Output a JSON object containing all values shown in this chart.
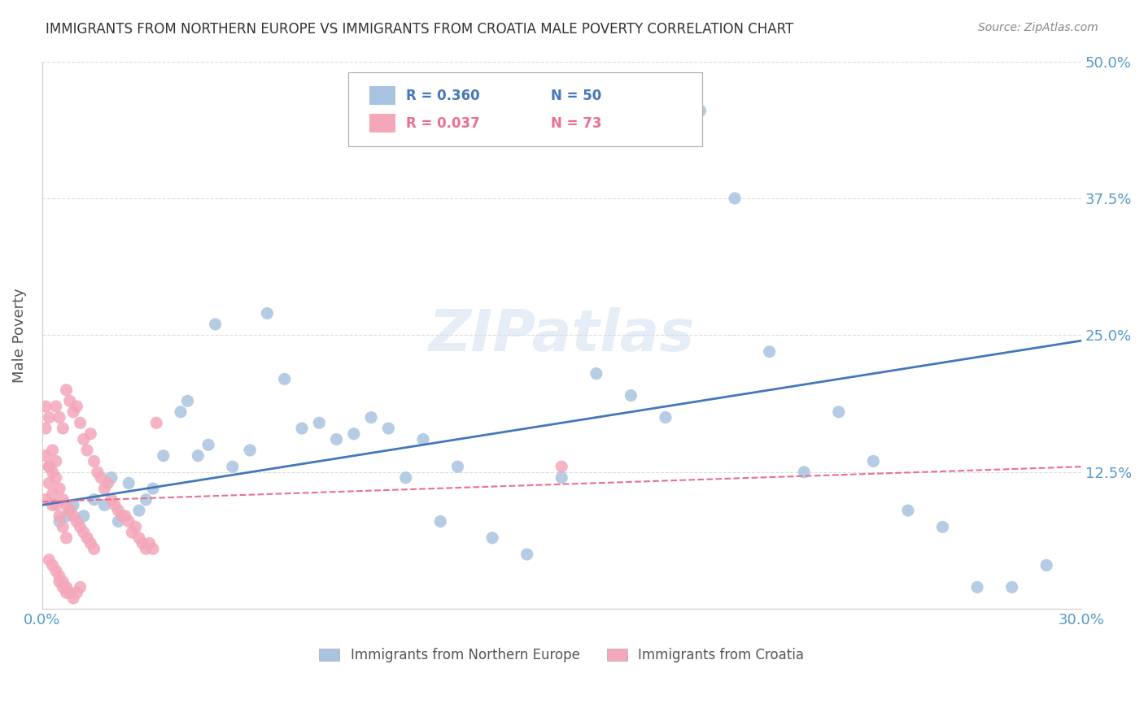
{
  "title": "IMMIGRANTS FROM NORTHERN EUROPE VS IMMIGRANTS FROM CROATIA MALE POVERTY CORRELATION CHART",
  "source": "Source: ZipAtlas.com",
  "xlabel": "",
  "ylabel": "Male Poverty",
  "xlim": [
    0.0,
    0.3
  ],
  "ylim": [
    0.0,
    0.5
  ],
  "yticks": [
    0.0,
    0.125,
    0.25,
    0.375,
    0.5
  ],
  "ytick_labels": [
    "",
    "12.5%",
    "25.0%",
    "37.5%",
    "50.0%"
  ],
  "xticks": [
    0.0,
    0.05,
    0.1,
    0.15,
    0.2,
    0.25,
    0.3
  ],
  "xtick_labels": [
    "0.0%",
    "",
    "",
    "",
    "",
    "",
    "30.0%"
  ],
  "blue_color": "#a8c4e0",
  "pink_color": "#f4a7b9",
  "blue_line_color": "#4477bb",
  "pink_line_color": "#e87090",
  "axis_label_color": "#5599cc",
  "title_color": "#333333",
  "watermark_text": "ZIPatlas",
  "watermark_color": "#ccddee",
  "legend_R_blue": "R = 0.360",
  "legend_N_blue": "N = 50",
  "legend_R_pink": "R = 0.037",
  "legend_N_pink": "N = 73",
  "legend_label_blue": "Immigrants from Northern Europe",
  "legend_label_pink": "Immigrants from Croatia",
  "blue_scatter_x": [
    0.008,
    0.012,
    0.015,
    0.018,
    0.02,
    0.022,
    0.025,
    0.028,
    0.03,
    0.032,
    0.035,
    0.04,
    0.042,
    0.045,
    0.048,
    0.05,
    0.055,
    0.06,
    0.065,
    0.07,
    0.075,
    0.08,
    0.085,
    0.09,
    0.095,
    0.1,
    0.105,
    0.11,
    0.115,
    0.12,
    0.13,
    0.14,
    0.15,
    0.16,
    0.17,
    0.18,
    0.19,
    0.2,
    0.21,
    0.22,
    0.23,
    0.24,
    0.25,
    0.26,
    0.27,
    0.28,
    0.29,
    0.005,
    0.007,
    0.009
  ],
  "blue_scatter_y": [
    0.09,
    0.085,
    0.1,
    0.095,
    0.12,
    0.08,
    0.115,
    0.09,
    0.1,
    0.11,
    0.14,
    0.18,
    0.19,
    0.14,
    0.15,
    0.26,
    0.13,
    0.145,
    0.27,
    0.21,
    0.165,
    0.17,
    0.155,
    0.16,
    0.175,
    0.165,
    0.12,
    0.155,
    0.08,
    0.13,
    0.065,
    0.05,
    0.12,
    0.215,
    0.195,
    0.175,
    0.455,
    0.375,
    0.235,
    0.125,
    0.18,
    0.135,
    0.09,
    0.075,
    0.02,
    0.02,
    0.04,
    0.08,
    0.085,
    0.095
  ],
  "pink_scatter_x": [
    0.001,
    0.002,
    0.003,
    0.004,
    0.005,
    0.006,
    0.007,
    0.008,
    0.009,
    0.01,
    0.011,
    0.012,
    0.013,
    0.014,
    0.015,
    0.016,
    0.017,
    0.018,
    0.019,
    0.02,
    0.021,
    0.022,
    0.023,
    0.024,
    0.025,
    0.026,
    0.027,
    0.028,
    0.029,
    0.03,
    0.031,
    0.032,
    0.033,
    0.001,
    0.002,
    0.003,
    0.004,
    0.005,
    0.006,
    0.007,
    0.008,
    0.009,
    0.01,
    0.011,
    0.012,
    0.013,
    0.014,
    0.015,
    0.001,
    0.002,
    0.003,
    0.004,
    0.005,
    0.006,
    0.007,
    0.15,
    0.002,
    0.003,
    0.004,
    0.005,
    0.006,
    0.007,
    0.008,
    0.009,
    0.01,
    0.011,
    0.001,
    0.002,
    0.003,
    0.004,
    0.005,
    0.006,
    0.007
  ],
  "pink_scatter_y": [
    0.1,
    0.115,
    0.095,
    0.185,
    0.175,
    0.165,
    0.2,
    0.19,
    0.18,
    0.185,
    0.17,
    0.155,
    0.145,
    0.16,
    0.135,
    0.125,
    0.12,
    0.11,
    0.115,
    0.1,
    0.095,
    0.09,
    0.085,
    0.085,
    0.08,
    0.07,
    0.075,
    0.065,
    0.06,
    0.055,
    0.06,
    0.055,
    0.17,
    0.165,
    0.13,
    0.125,
    0.12,
    0.11,
    0.1,
    0.095,
    0.09,
    0.085,
    0.08,
    0.075,
    0.07,
    0.065,
    0.06,
    0.055,
    0.14,
    0.13,
    0.105,
    0.095,
    0.085,
    0.075,
    0.065,
    0.13,
    0.045,
    0.04,
    0.035,
    0.03,
    0.025,
    0.02,
    0.015,
    0.01,
    0.015,
    0.02,
    0.185,
    0.175,
    0.145,
    0.135,
    0.025,
    0.02,
    0.015
  ],
  "blue_trendline_x": [
    0.0,
    0.3
  ],
  "blue_trendline_y": [
    0.095,
    0.245
  ],
  "pink_trendline_x": [
    0.0,
    0.3
  ],
  "pink_trendline_y": [
    0.098,
    0.13
  ],
  "background_color": "#ffffff",
  "grid_color": "#dddddd",
  "marker_size": 120
}
